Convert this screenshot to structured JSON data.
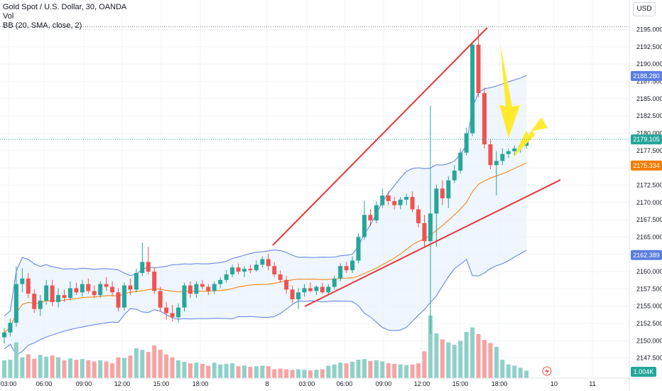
{
  "legend": {
    "symbol": "Gold Spot / U.S. Dollar, 30, OANDA",
    "vol": "Vol",
    "bb": "BB (20, SMA, close, 2)"
  },
  "currency_button": "USD",
  "colors": {
    "up": "#26a69a",
    "down": "#ef5350",
    "vol_up": "#8fd0c8",
    "vol_down": "#f5a3a3",
    "bb_band": "#5b7de0",
    "bb_basis": "#f57c00",
    "bb_fill": "#e8f2fc",
    "trendline": "#e53935",
    "arrow": "#ffea2e",
    "grid": "#f0f3fa",
    "axis_text": "#131722",
    "price_tag": "#131722"
  },
  "chart_data": {
    "type": "candlestick",
    "y_axis": {
      "ticks": [
        "2147.500",
        "2150.000",
        "2152.500",
        "2155.000",
        "2157.500",
        "2160.000",
        "2162.500",
        "2165.000",
        "2167.500",
        "2170.000",
        "2172.500",
        "2175.000",
        "2177.500",
        "2180.000",
        "2182.500",
        "2185.000",
        "2187.500",
        "2190.000",
        "2192.500",
        "2195.000"
      ]
    },
    "x_axis": {
      "ticks": [
        "03:00",
        "06:00",
        "09:00",
        "12:00",
        "15:00",
        "18:00",
        "8",
        "03:00",
        "06:00",
        "09:00",
        "12:00",
        "15:00",
        "18:00",
        "10",
        "11"
      ]
    },
    "price_tags": [
      {
        "label": "2188.280",
        "value": 2188.28,
        "kind": "bb_upper"
      },
      {
        "label": "2179.105",
        "value": 2179.105,
        "kind": "last_price"
      },
      {
        "label": "2175.334",
        "value": 2175.334,
        "kind": "bb_basis"
      },
      {
        "label": "2162.389",
        "value": 2162.389,
        "kind": "bb_lower"
      }
    ],
    "volume_tag": "1.004K",
    "candles": [
      [
        2150.5,
        2151.8,
        2149.6,
        2151.2
      ],
      [
        2151.2,
        2153.2,
        2150.6,
        2152.6
      ],
      [
        2152.6,
        2160.8,
        2152.0,
        2158.2
      ],
      [
        2158.2,
        2160.5,
        2157.0,
        2159.0
      ],
      [
        2159.0,
        2159.8,
        2156.2,
        2156.8
      ],
      [
        2156.8,
        2157.4,
        2154.0,
        2154.6
      ],
      [
        2154.6,
        2156.6,
        2153.6,
        2155.8
      ],
      [
        2155.8,
        2158.8,
        2155.2,
        2158.0
      ],
      [
        2158.0,
        2158.8,
        2155.0,
        2155.6
      ],
      [
        2155.6,
        2157.6,
        2154.8,
        2156.6
      ],
      [
        2156.6,
        2157.4,
        2155.6,
        2156.2
      ],
      [
        2156.2,
        2158.6,
        2155.8,
        2157.6
      ],
      [
        2157.6,
        2158.4,
        2156.6,
        2157.0
      ],
      [
        2157.0,
        2158.8,
        2156.4,
        2158.2
      ],
      [
        2158.2,
        2159.0,
        2156.8,
        2157.2
      ],
      [
        2157.2,
        2158.0,
        2156.2,
        2156.6
      ],
      [
        2156.6,
        2158.6,
        2156.2,
        2158.2
      ],
      [
        2158.2,
        2159.2,
        2157.2,
        2157.8
      ],
      [
        2157.8,
        2158.6,
        2156.4,
        2157.0
      ],
      [
        2157.0,
        2157.6,
        2154.2,
        2154.8
      ],
      [
        2154.8,
        2158.4,
        2154.4,
        2158.0
      ],
      [
        2158.0,
        2159.0,
        2156.6,
        2157.4
      ],
      [
        2157.4,
        2160.4,
        2157.0,
        2159.8
      ],
      [
        2159.8,
        2164.2,
        2159.4,
        2161.4
      ],
      [
        2161.4,
        2163.6,
        2159.6,
        2160.0
      ],
      [
        2160.0,
        2160.6,
        2156.8,
        2157.2
      ],
      [
        2157.2,
        2157.8,
        2154.2,
        2154.8
      ],
      [
        2154.8,
        2155.6,
        2153.0,
        2154.0
      ],
      [
        2154.0,
        2155.2,
        2152.8,
        2153.4
      ],
      [
        2153.4,
        2155.4,
        2152.6,
        2154.8
      ],
      [
        2154.8,
        2158.4,
        2154.2,
        2158.0
      ],
      [
        2158.0,
        2158.6,
        2156.2,
        2156.8
      ],
      [
        2156.8,
        2158.6,
        2156.2,
        2158.2
      ],
      [
        2158.2,
        2158.8,
        2157.4,
        2157.8
      ],
      [
        2157.8,
        2158.2,
        2156.6,
        2157.2
      ],
      [
        2157.2,
        2158.6,
        2156.8,
        2158.2
      ],
      [
        2158.2,
        2159.2,
        2157.6,
        2158.8
      ],
      [
        2158.8,
        2160.2,
        2158.4,
        2159.6
      ],
      [
        2159.6,
        2161.0,
        2159.2,
        2160.6
      ],
      [
        2160.6,
        2161.2,
        2159.6,
        2160.0
      ],
      [
        2160.0,
        2160.8,
        2159.2,
        2160.4
      ],
      [
        2160.4,
        2161.0,
        2159.8,
        2160.2
      ],
      [
        2160.2,
        2161.6,
        2160.0,
        2161.0
      ],
      [
        2161.0,
        2162.2,
        2160.6,
        2161.8
      ],
      [
        2161.8,
        2162.6,
        2160.2,
        2160.8
      ],
      [
        2160.8,
        2161.4,
        2159.2,
        2159.6
      ],
      [
        2159.6,
        2160.2,
        2158.4,
        2158.8
      ],
      [
        2158.8,
        2159.4,
        2156.8,
        2157.4
      ],
      [
        2157.4,
        2158.0,
        2155.4,
        2156.0
      ],
      [
        2156.0,
        2157.6,
        2154.6,
        2157.0
      ],
      [
        2157.0,
        2158.2,
        2156.4,
        2157.6
      ],
      [
        2157.6,
        2158.4,
        2157.0,
        2157.2
      ],
      [
        2157.2,
        2158.0,
        2156.6,
        2157.8
      ],
      [
        2157.8,
        2158.4,
        2156.8,
        2157.0
      ],
      [
        2157.0,
        2158.2,
        2156.6,
        2157.8
      ],
      [
        2157.8,
        2159.4,
        2157.4,
        2159.0
      ],
      [
        2159.0,
        2161.2,
        2158.6,
        2160.8
      ],
      [
        2160.8,
        2161.4,
        2159.8,
        2160.2
      ],
      [
        2160.2,
        2162.2,
        2159.8,
        2161.6
      ],
      [
        2161.6,
        2165.6,
        2161.2,
        2165.0
      ],
      [
        2165.0,
        2170.2,
        2164.6,
        2168.2
      ],
      [
        2168.2,
        2169.0,
        2166.6,
        2167.4
      ],
      [
        2167.4,
        2170.2,
        2167.0,
        2169.6
      ],
      [
        2169.6,
        2172.0,
        2169.2,
        2171.0
      ],
      [
        2171.0,
        2171.6,
        2169.6,
        2170.2
      ],
      [
        2170.2,
        2170.8,
        2169.0,
        2169.6
      ],
      [
        2169.6,
        2170.8,
        2169.0,
        2170.4
      ],
      [
        2170.4,
        2171.2,
        2169.6,
        2170.8
      ],
      [
        2170.8,
        2171.6,
        2168.6,
        2169.0
      ],
      [
        2169.0,
        2169.6,
        2166.4,
        2167.0
      ],
      [
        2167.0,
        2168.2,
        2163.6,
        2164.4
      ],
      [
        2164.4,
        2184.0,
        2151.0,
        2168.4
      ],
      [
        2168.4,
        2172.6,
        2163.6,
        2172.0
      ],
      [
        2172.0,
        2173.2,
        2169.6,
        2170.6
      ],
      [
        2170.6,
        2173.8,
        2169.2,
        2173.2
      ],
      [
        2173.2,
        2175.4,
        2172.8,
        2174.6
      ],
      [
        2174.6,
        2177.8,
        2174.2,
        2177.2
      ],
      [
        2177.2,
        2180.8,
        2176.8,
        2180.0
      ],
      [
        2180.0,
        2193.2,
        2179.6,
        2192.8
      ],
      [
        2192.8,
        2195.0,
        2185.2,
        2185.8
      ],
      [
        2185.8,
        2186.6,
        2177.8,
        2178.4
      ],
      [
        2178.4,
        2179.2,
        2174.8,
        2175.4
      ],
      [
        2175.4,
        2177.4,
        2171.0,
        2176.0
      ],
      [
        2176.0,
        2177.8,
        2175.4,
        2177.0
      ],
      [
        2177.0,
        2177.8,
        2176.4,
        2177.4
      ],
      [
        2177.4,
        2178.2,
        2176.8,
        2177.8
      ],
      [
        2177.8,
        2178.4,
        2177.2,
        2178.2
      ],
      [
        2178.2,
        2179.4,
        2177.8,
        2179.0
      ]
    ],
    "volumes": [
      60,
      62,
      120,
      70,
      80,
      65,
      78,
      72,
      76,
      70,
      60,
      66,
      62,
      64,
      60,
      56,
      60,
      56,
      50,
      70,
      68,
      76,
      100,
      95,
      88,
      110,
      95,
      80,
      70,
      60,
      55,
      50,
      52,
      48,
      42,
      52,
      46,
      48,
      50,
      40,
      42,
      38,
      40,
      42,
      40,
      30,
      32,
      30,
      28,
      30,
      28,
      26,
      28,
      30,
      42,
      46,
      52,
      50,
      55,
      62,
      64,
      58,
      60,
      56,
      50,
      48,
      46,
      44,
      46,
      50,
      90,
      210,
      150,
      130,
      120,
      112,
      125,
      155,
      170,
      148,
      128,
      118,
      105,
      62,
      46,
      42,
      35,
      25
    ]
  }
}
